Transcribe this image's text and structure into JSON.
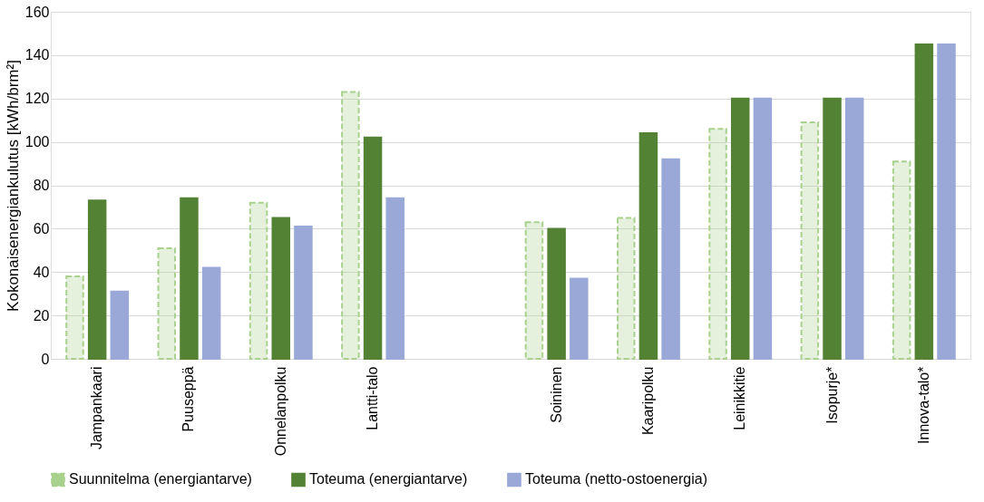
{
  "chart_data": {
    "type": "bar",
    "ylabel": "Kokonaisenergiankulutus [kWh/brm²]",
    "categories": [
      "Jampankaari",
      "Puuseppä",
      "Onnelanpolku",
      "Lantti-talo",
      null,
      "Soininen",
      "Kaaripolku",
      "Leinikkitie",
      "Isopurje*",
      "Innova-talo*"
    ],
    "series": [
      {
        "name": "Suunnitelma (energiantarve)",
        "color": "#a9d18e",
        "line_style": "dashed",
        "values": [
          38,
          51,
          72,
          123,
          null,
          63,
          65,
          106,
          109,
          91
        ]
      },
      {
        "name": "Toteuma (energiantarve)",
        "color": "#548235",
        "values": [
          73,
          74,
          65,
          102,
          null,
          60,
          104,
          120,
          120,
          145
        ]
      },
      {
        "name": "Toteuma (netto-ostoenergia)",
        "color": "#9aa8d8",
        "values": [
          31,
          42,
          61,
          74,
          null,
          37,
          92,
          120,
          120,
          145
        ]
      }
    ],
    "ylim": [
      0,
      160
    ],
    "yticks": [
      0,
      20,
      40,
      60,
      80,
      100,
      120,
      140,
      160
    ],
    "grid": "y",
    "legend": "bottom"
  }
}
